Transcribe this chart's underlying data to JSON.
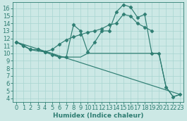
{
  "lines": [
    {
      "x": [
        0,
        1,
        2,
        3,
        4,
        5,
        6,
        7,
        8,
        9,
        10,
        11,
        12,
        13,
        14,
        15,
        16,
        17,
        18,
        19
      ],
      "y": [
        11.5,
        11.0,
        10.5,
        10.5,
        10.2,
        10.5,
        11.2,
        11.8,
        12.2,
        12.5,
        12.8,
        13.0,
        13.3,
        13.8,
        14.0,
        15.2,
        15.0,
        14.0,
        13.5,
        13.0
      ],
      "marker": true
    },
    {
      "x": [
        0,
        1,
        2,
        3,
        4,
        5,
        6,
        7,
        8,
        9,
        10,
        11,
        12,
        13,
        14,
        15,
        16,
        17,
        18,
        19,
        20,
        21,
        22,
        23
      ],
      "y": [
        11.5,
        11.0,
        10.5,
        10.5,
        10.2,
        9.8,
        9.5,
        9.5,
        13.8,
        13.0,
        10.2,
        11.5,
        13.0,
        13.0,
        15.5,
        16.5,
        16.2,
        14.8,
        15.2,
        10.0,
        10.0,
        5.5,
        4.2,
        4.5
      ],
      "marker": true
    },
    {
      "x": [
        0,
        1,
        2,
        3,
        4,
        5,
        6,
        7,
        8,
        9,
        10,
        11,
        12,
        13,
        14,
        15,
        16,
        17,
        18,
        19,
        20,
        21,
        22,
        23
      ],
      "y": [
        11.5,
        11.0,
        10.5,
        10.3,
        10.2,
        10.0,
        9.5,
        9.5,
        9.5,
        9.5,
        10.0,
        10.0,
        10.0,
        10.0,
        10.0,
        10.0,
        10.0,
        10.0,
        10.0,
        10.0,
        10.0,
        5.5,
        4.2,
        4.5
      ],
      "marker": false
    },
    {
      "x": [
        0,
        23
      ],
      "y": [
        11.5,
        4.5
      ],
      "marker": false
    }
  ],
  "color": "#2e7d72",
  "bg_color": "#cce8e5",
  "grid_color": "#a8d4d0",
  "xlabel": "Humidex (Indice chaleur)",
  "xlim": [
    -0.5,
    23.5
  ],
  "ylim": [
    3.5,
    16.8
  ],
  "xticks": [
    0,
    1,
    2,
    3,
    4,
    5,
    6,
    7,
    8,
    9,
    10,
    11,
    12,
    13,
    14,
    15,
    16,
    17,
    18,
    19,
    20,
    21,
    22,
    23
  ],
  "yticks": [
    4,
    5,
    6,
    7,
    8,
    9,
    10,
    11,
    12,
    13,
    14,
    15,
    16
  ],
  "fontsize": 6.0,
  "markersize": 2.5,
  "linewidth": 0.85
}
